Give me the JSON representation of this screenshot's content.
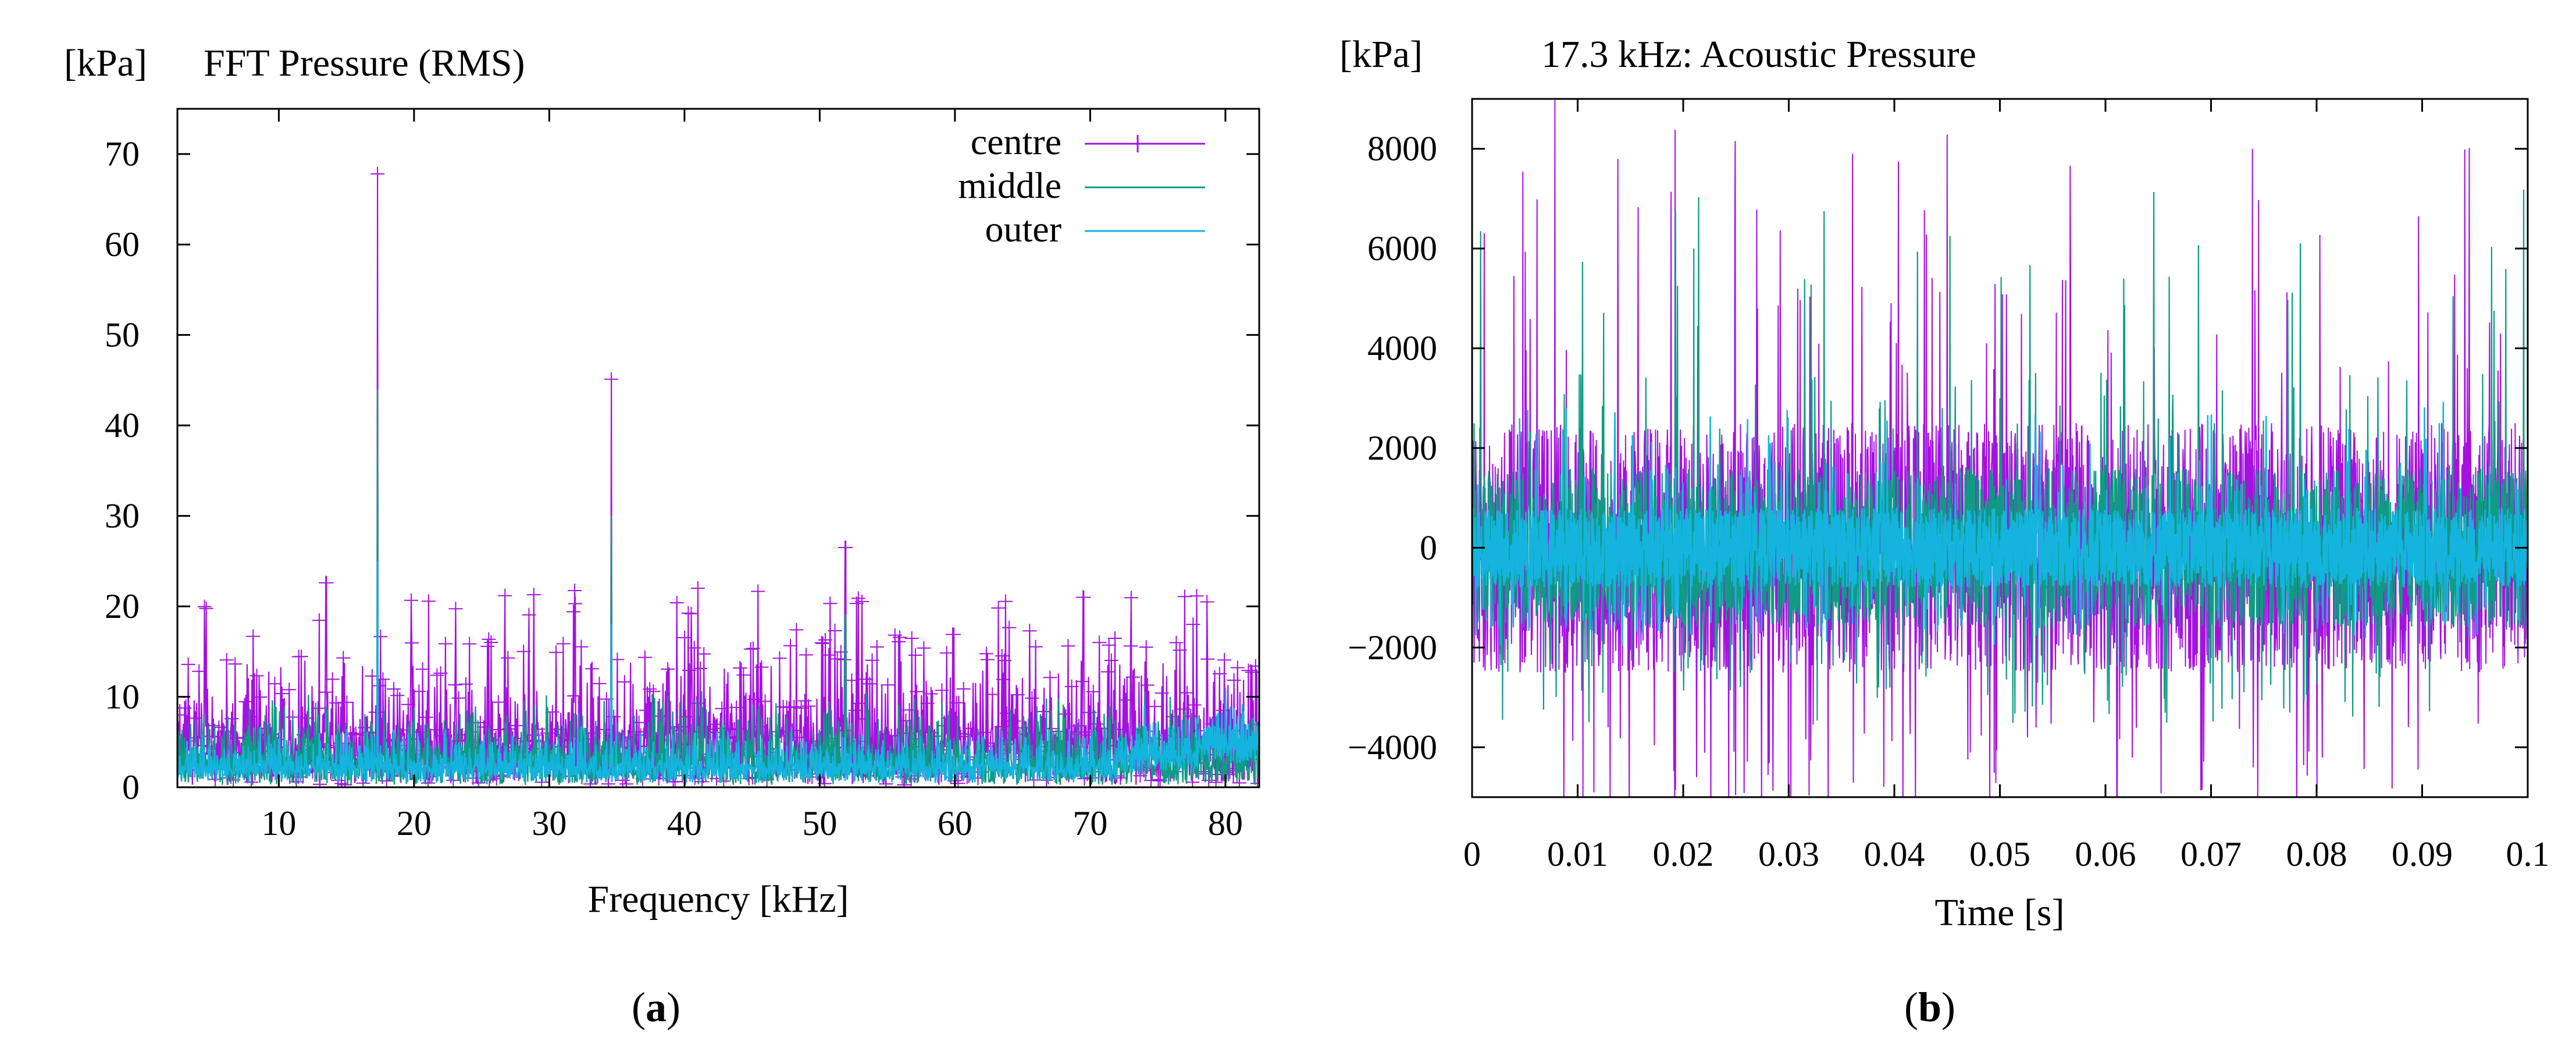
{
  "colors": {
    "centre": "#a511e0",
    "middle": "#0f9b84",
    "outer": "#14b4de",
    "axis": "#000000"
  },
  "panel_a": {
    "caption_open": "(",
    "caption_letter": "a",
    "caption_close": ")"
  },
  "panel_b": {
    "caption_open": "(",
    "caption_letter": "b",
    "caption_close": ")"
  },
  "chart_data": [
    {
      "type": "line",
      "title_unit": "[kPa]",
      "title": "FFT   Pressure (RMS)",
      "xlabel": "Frequency [kHz]",
      "ylabel": "[kPa]",
      "xlim": [
        2.5,
        82.5
      ],
      "ylim": [
        0,
        75
      ],
      "xticks": [
        10,
        20,
        30,
        40,
        50,
        60,
        70,
        80
      ],
      "xtick_labels": [
        "10",
        "20",
        "30",
        "40",
        "50",
        "60",
        "70",
        "80"
      ],
      "yticks": [
        0,
        10,
        20,
        30,
        40,
        50,
        60,
        70
      ],
      "ytick_labels": [
        "0",
        "10",
        "20",
        "30",
        "40",
        "50",
        "60",
        "70"
      ],
      "legend_position": "top-right",
      "series": [
        {
          "name": "centre",
          "color": "#a511e0",
          "marker": "plus",
          "noise_band": [
            0.5,
            19
          ],
          "peaks": [
            [
              17.3,
              67.8
            ],
            [
              34.6,
              45.1
            ],
            [
              51.9,
              26.5
            ],
            [
              13.5,
              22.6
            ],
            [
              41.0,
              22.0
            ],
            [
              69.5,
              21.0
            ]
          ]
        },
        {
          "name": "middle",
          "color": "#0f9b84",
          "marker": "none",
          "noise_band": [
            0.5,
            11
          ],
          "peaks": [
            [
              17.3,
              44.0
            ],
            [
              34.6,
              30.0
            ],
            [
              51.9,
              19.0
            ]
          ]
        },
        {
          "name": "outer",
          "color": "#14b4de",
          "marker": "none",
          "noise_band": [
            1,
            7
          ],
          "peaks": [
            [
              17.3,
              25.0
            ],
            [
              34.6,
              18.0
            ],
            [
              74.0,
              9.0
            ],
            [
              80.0,
              11.0
            ]
          ]
        }
      ]
    },
    {
      "type": "line",
      "title_unit": "[kPa]",
      "title": "17.3 kHz:   Acoustic Pressure",
      "xlabel": "Time [s]",
      "ylabel": "[kPa]",
      "xlim": [
        0,
        0.1
      ],
      "ylim": [
        -5000,
        9000
      ],
      "xticks": [
        0,
        0.01,
        0.02,
        0.03,
        0.04,
        0.05,
        0.06,
        0.07,
        0.08,
        0.09,
        0.1
      ],
      "xtick_labels": [
        "0",
        "0.01",
        "0.02",
        "0.03",
        "0.04",
        "0.05",
        "0.06",
        "0.07",
        "0.08",
        "0.09",
        "0.1"
      ],
      "yticks": [
        -4000,
        -2000,
        0,
        2000,
        4000,
        6000,
        8000
      ],
      "ytick_labels": [
        "−4000",
        "−2000",
        "0",
        "2000",
        "4000",
        "6000",
        "8000"
      ],
      "series": [
        {
          "name": "centre",
          "color": "#a511e0",
          "amplitude_typical": 2500,
          "amplitude_max": 9000,
          "amplitude_min": -5000
        },
        {
          "name": "middle",
          "color": "#0f9b84",
          "amplitude_typical": 1600,
          "amplitude_max": 7200,
          "amplitude_min": -3200
        },
        {
          "name": "outer",
          "color": "#14b4de",
          "amplitude_typical": 800,
          "amplitude_max": 3000,
          "amplitude_min": -2000
        }
      ]
    }
  ]
}
